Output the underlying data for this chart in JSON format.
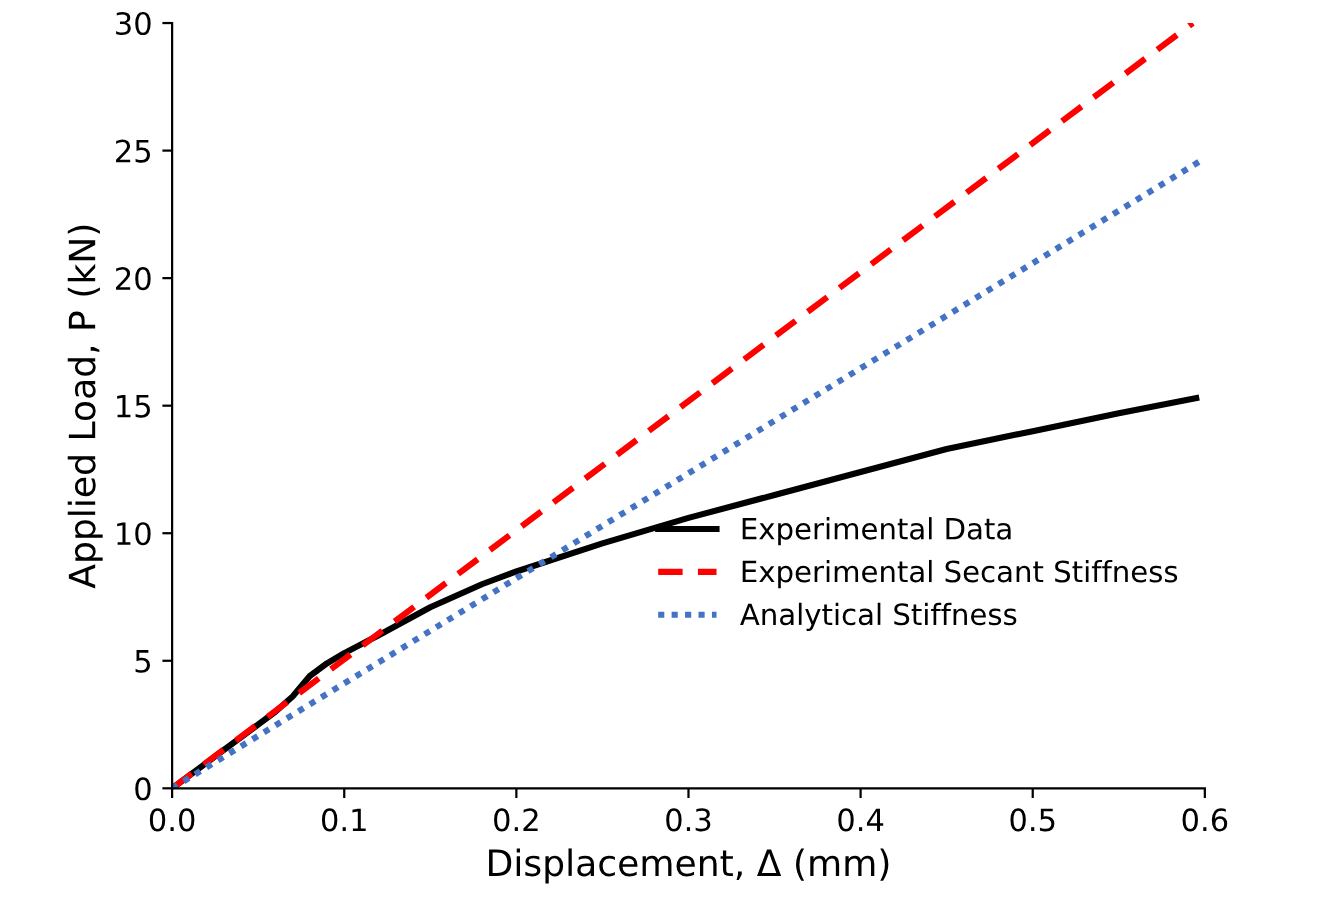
{
  "chart_data": {
    "type": "line",
    "xlabel": "Displacement, Δ (mm)",
    "ylabel": "Applied Load, P (kN)",
    "xlim": [
      0,
      0.6
    ],
    "ylim": [
      0,
      30
    ],
    "xticks": [
      {
        "value": 0,
        "label": "0.0"
      },
      0.1,
      0.2,
      0.3,
      0.4,
      0.5,
      0.6
    ],
    "yticks": [
      0,
      5,
      10,
      15,
      20,
      25,
      30
    ],
    "grid": false,
    "legend": "right",
    "series": [
      {
        "name": "Experimental Data",
        "color": "#000000",
        "line_style": "solid",
        "x": [
          0,
          0.02,
          0.04,
          0.06,
          0.07,
          0.08,
          0.09,
          0.1,
          0.12,
          0.15,
          0.18,
          0.2,
          0.25,
          0.3,
          0.35,
          0.4,
          0.45,
          0.5,
          0.55,
          0.595
        ],
        "values": [
          0,
          1.0,
          2.0,
          3.0,
          3.6,
          4.4,
          4.9,
          5.3,
          6.0,
          7.1,
          8.0,
          8.5,
          9.6,
          10.6,
          11.5,
          12.4,
          13.3,
          14.0,
          14.7,
          15.3
        ]
      },
      {
        "name": "Experimental Secant Stiffness",
        "color": "#ff0000",
        "line_style": "dashed",
        "x": [
          0,
          0.593
        ],
        "values": [
          0,
          30
        ]
      },
      {
        "name": "Analytical Stiffness",
        "color": "#4472c4",
        "line_style": "dotted",
        "x": [
          0,
          0.6
        ],
        "values": [
          0,
          24.7
        ]
      }
    ]
  }
}
